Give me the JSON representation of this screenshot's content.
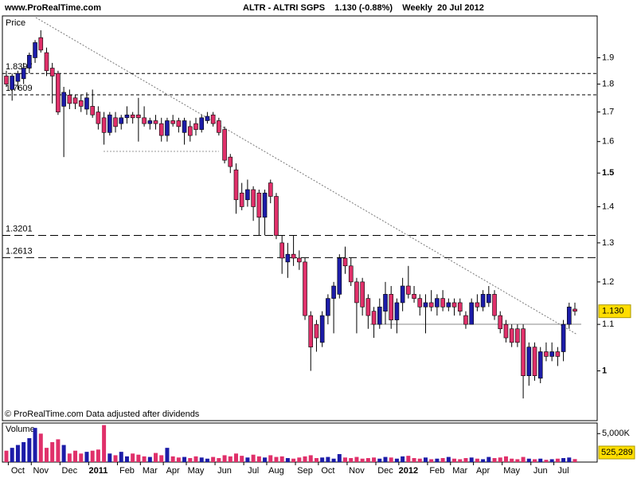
{
  "chart_data": {
    "type": "candlestick",
    "site": "www.ProRealTime.com",
    "title": "ALTR - ALTRI SGPS    1.130 (-0.88%)    Weekly  20 Jul 2012",
    "price_label": "Price",
    "volume_label": "Volume",
    "footer": "© ProRealTime.com  Data adjusted after dividends",
    "log_scale": true,
    "ylim": [
      0.903,
      2.07
    ],
    "yticks": [
      1,
      1.1,
      1.2,
      1.3,
      1.4,
      1.5,
      1.6,
      1.7,
      1.8,
      1.9
    ],
    "levels": [
      1.8397,
      1.7609,
      1.3201,
      1.2613
    ],
    "up_color": "#1c1ca8",
    "down_color": "#e0306a",
    "categories": [
      null,
      null,
      "Oct",
      null,
      null,
      null,
      "Nov",
      null,
      null,
      null,
      null,
      "Dec",
      null,
      null,
      null,
      null,
      "2011",
      null,
      null,
      null,
      null,
      "Feb",
      null,
      null,
      null,
      "Mar",
      null,
      null,
      null,
      "Apr",
      null,
      null,
      null,
      "May",
      null,
      null,
      null,
      null,
      "Jun",
      null,
      null,
      null,
      null,
      "Jul",
      null,
      null,
      null,
      "Aug",
      null,
      null,
      null,
      null,
      "Sep",
      null,
      null,
      null,
      "Oct",
      null,
      null,
      null,
      null,
      "Nov",
      null,
      null,
      null,
      null,
      "Dec",
      null,
      null,
      null,
      "2012",
      null,
      null,
      null,
      null,
      "Feb",
      null,
      null,
      null,
      "Mar",
      null,
      null,
      null,
      "Apr",
      null,
      null,
      null,
      null,
      "May",
      null,
      null,
      null,
      null,
      "Jun",
      null,
      null,
      null,
      "Jul",
      null,
      null
    ],
    "open": [
      1.83,
      1.78,
      1.81,
      1.82,
      1.86,
      1.9,
      1.98,
      1.92,
      1.86,
      1.84,
      1.72,
      1.76,
      1.75,
      1.74,
      1.71,
      1.72,
      1.7,
      1.68,
      1.63,
      1.68,
      1.66,
      1.68,
      1.69,
      1.69,
      1.68,
      1.66,
      1.67,
      1.66,
      1.62,
      1.67,
      1.67,
      1.63,
      1.65,
      1.66,
      1.64,
      1.67,
      1.69,
      1.67,
      1.64,
      1.55,
      1.51,
      1.44,
      1.42,
      1.45,
      1.44,
      1.37,
      1.47,
      1.43,
      1.3,
      1.25,
      1.27,
      1.26,
      1.25,
      1.12,
      1.1,
      1.06,
      1.12,
      1.16,
      1.17,
      1.26,
      1.24,
      1.2,
      1.2,
      1.16,
      1.13,
      1.1,
      1.13,
      1.17,
      1.11,
      1.15,
      1.19,
      1.17,
      1.16,
      1.14,
      1.15,
      1.14,
      1.16,
      1.14,
      1.15,
      1.15,
      1.12,
      1.1,
      1.15,
      1.14,
      1.15,
      1.17,
      1.12,
      1.1,
      1.09,
      1.09,
      1.09,
      0.99,
      1.05,
      0.985,
      1.04,
      1.03,
      1.04,
      1.04,
      1.1,
      1.135
    ],
    "high": [
      1.85,
      1.84,
      1.85,
      1.88,
      1.92,
      1.97,
      2.01,
      1.94,
      1.88,
      1.85,
      1.79,
      1.78,
      1.76,
      1.76,
      1.77,
      1.78,
      1.72,
      1.7,
      1.7,
      1.7,
      1.69,
      1.72,
      1.7,
      1.75,
      1.72,
      1.68,
      1.69,
      1.68,
      1.68,
      1.69,
      1.68,
      1.68,
      1.67,
      1.68,
      1.69,
      1.7,
      1.7,
      1.68,
      1.65,
      1.56,
      1.53,
      1.47,
      1.48,
      1.46,
      1.45,
      1.45,
      1.48,
      1.44,
      1.32,
      1.3,
      1.32,
      1.28,
      1.26,
      1.13,
      1.11,
      1.13,
      1.17,
      1.2,
      1.27,
      1.29,
      1.26,
      1.21,
      1.21,
      1.17,
      1.14,
      1.16,
      1.2,
      1.19,
      1.16,
      1.21,
      1.24,
      1.19,
      1.17,
      1.17,
      1.18,
      1.17,
      1.18,
      1.16,
      1.16,
      1.16,
      1.13,
      1.16,
      1.17,
      1.18,
      1.19,
      1.18,
      1.13,
      1.11,
      1.1,
      1.1,
      1.1,
      1.06,
      1.06,
      1.05,
      1.06,
      1.06,
      1.05,
      1.11,
      1.15,
      1.15
    ],
    "low": [
      1.79,
      1.74,
      1.78,
      1.8,
      1.84,
      1.88,
      1.92,
      1.83,
      1.73,
      1.69,
      1.55,
      1.71,
      1.71,
      1.7,
      1.69,
      1.68,
      1.64,
      1.59,
      1.62,
      1.63,
      1.64,
      1.66,
      1.66,
      1.6,
      1.65,
      1.64,
      1.64,
      1.6,
      1.6,
      1.65,
      1.63,
      1.59,
      1.6,
      1.62,
      1.63,
      1.66,
      1.65,
      1.62,
      1.53,
      1.5,
      1.38,
      1.39,
      1.4,
      1.36,
      1.32,
      1.32,
      1.41,
      1.31,
      1.22,
      1.21,
      1.24,
      1.23,
      1.11,
      1.0,
      1.04,
      1.05,
      1.1,
      1.08,
      1.16,
      1.22,
      1.19,
      1.08,
      1.12,
      1.09,
      1.07,
      1.09,
      1.1,
      1.09,
      1.08,
      1.13,
      1.16,
      1.15,
      1.12,
      1.08,
      1.13,
      1.12,
      1.13,
      1.13,
      1.12,
      1.12,
      1.09,
      1.1,
      1.13,
      1.13,
      1.14,
      1.11,
      1.08,
      1.06,
      1.05,
      1.05,
      0.945,
      0.97,
      0.98,
      0.975,
      1.02,
      1.02,
      1.01,
      1.02,
      1.09,
      1.12
    ],
    "close": [
      1.8,
      1.83,
      1.84,
      1.86,
      1.91,
      1.96,
      1.93,
      1.85,
      1.83,
      1.7,
      1.77,
      1.73,
      1.73,
      1.72,
      1.75,
      1.69,
      1.66,
      1.63,
      1.69,
      1.65,
      1.68,
      1.69,
      1.68,
      1.68,
      1.66,
      1.67,
      1.66,
      1.62,
      1.67,
      1.66,
      1.65,
      1.67,
      1.62,
      1.64,
      1.68,
      1.685,
      1.66,
      1.63,
      1.54,
      1.52,
      1.42,
      1.4,
      1.45,
      1.4,
      1.37,
      1.44,
      1.43,
      1.32,
      1.26,
      1.27,
      1.26,
      1.25,
      1.12,
      1.05,
      1.07,
      1.12,
      1.16,
      1.19,
      1.26,
      1.24,
      1.2,
      1.15,
      1.14,
      1.12,
      1.1,
      1.14,
      1.17,
      1.11,
      1.15,
      1.19,
      1.17,
      1.16,
      1.14,
      1.15,
      1.14,
      1.16,
      1.14,
      1.15,
      1.14,
      1.13,
      1.1,
      1.15,
      1.14,
      1.17,
      1.17,
      1.12,
      1.09,
      1.07,
      1.06,
      1.06,
      0.99,
      1.05,
      0.99,
      1.04,
      1.03,
      1.04,
      1.03,
      1.1,
      1.14,
      1.13
    ],
    "last_close_label": "1.130",
    "volume": [
      2000000,
      2500000,
      3000000,
      3500000,
      4200000,
      6000000,
      5000000,
      2500000,
      3500000,
      4000000,
      3000000,
      1500000,
      2000000,
      1500000,
      1800000,
      2000000,
      2200000,
      6500000,
      1500000,
      1200000,
      1800000,
      1000000,
      1500000,
      1300000,
      1000000,
      900000,
      1600000,
      1200000,
      2500000,
      1000000,
      800000,
      900000,
      700000,
      1000000,
      800000,
      600000,
      900000,
      700000,
      1200000,
      1000000,
      1500000,
      1100000,
      800000,
      1300000,
      1000000,
      800000,
      1200000,
      900000,
      1000000,
      700000,
      600000,
      800000,
      1000000,
      1200000,
      700000,
      800000,
      900000,
      600000,
      1400000,
      800000,
      700000,
      900000,
      600000,
      700000,
      800000,
      600000,
      900000,
      800000,
      600000,
      1000000,
      1100000,
      700000,
      600000,
      800000,
      500000,
      600000,
      700000,
      900000,
      600000,
      500000,
      700000,
      800000,
      600000,
      500000,
      900000,
      700000,
      800000,
      1000000,
      600000,
      500000,
      900000,
      600000,
      500000,
      600000,
      400000,
      500000,
      600000,
      700000,
      800000,
      525289
    ],
    "last_volume_label": "525,289",
    "volume_ylim": [
      0,
      6860000
    ],
    "volume_yticks": [
      {
        "value": 5000000,
        "label": "5,000K"
      }
    ]
  }
}
